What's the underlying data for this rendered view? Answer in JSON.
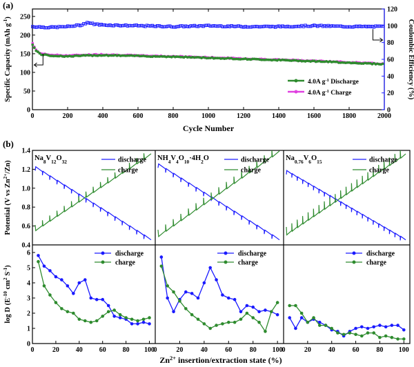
{
  "panel_a": {
    "label": "(a)",
    "xlabel": "Cycle Number",
    "ylabel_left": "Specific Capacity (mAh g",
    "ylabel_left_sup": "-1",
    "ylabel_left_close": ")",
    "ylabel_right": "Coulombic Efficiency (%)",
    "xticks": [
      "0",
      "200",
      "400",
      "600",
      "800",
      "1000",
      "1200",
      "1400",
      "1600",
      "1800",
      "2000"
    ],
    "yticks_left": [
      "0",
      "50",
      "100",
      "150",
      "200",
      "250"
    ],
    "yticks_right": [
      "0",
      "20",
      "40",
      "60",
      "80",
      "100",
      "120"
    ],
    "legend": [
      {
        "text": "4.0A g",
        "sup": "-1",
        "suffix": " Discharge",
        "color": "#2e8b2e"
      },
      {
        "text": "4.0A g",
        "sup": "-1",
        "suffix": " Charge",
        "color": "#e040e0"
      }
    ]
  },
  "panel_b": {
    "label": "(b)",
    "xlabel": "Zn",
    "xlabel_sup": "2+",
    "xlabel_rest": " insertion/extraction state (%)",
    "ylabel_top": "Potential (V vs Zn",
    "ylabel_top_sup": "2+",
    "ylabel_top_close": "/Zn)",
    "ylabel_bottom": "log D (E",
    "ylabel_bottom_sup1": "-10",
    "ylabel_bottom_mid": " cm",
    "ylabel_bottom_sup2": "2",
    "ylabel_bottom_end": " S",
    "ylabel_bottom_sup3": "-1",
    "ylabel_bottom_close": ")",
    "yticks_top": [
      "0.4",
      "0.6",
      "0.8",
      "1.0",
      "1.2",
      "1.4"
    ],
    "yticks_bottom": [
      "0",
      "1",
      "2",
      "3",
      "4",
      "5",
      "6"
    ],
    "xticks": [
      "0",
      "20",
      "40",
      "60",
      "80",
      "100"
    ],
    "legend_discharge": "discharge",
    "legend_charge": "charge",
    "materials": [
      {
        "prefix": "Na",
        "parts": [
          [
            "Na",
            "8"
          ],
          [
            "V",
            "12"
          ],
          [
            "O",
            "32"
          ]
        ],
        "text": "Na8V12O32"
      },
      {
        "prefix": "NH4",
        "parts": [
          [
            "NH",
            "4"
          ],
          [
            "V",
            "4"
          ],
          [
            "O",
            "10"
          ],
          [
            "·4H",
            "2"
          ],
          [
            "O",
            ""
          ]
        ],
        "text": "NH4V4O10·4H2O"
      },
      {
        "prefix": "Na0.76",
        "parts": [
          [
            "Na",
            "0.76"
          ],
          [
            "V",
            "6"
          ],
          [
            "O",
            "15"
          ]
        ],
        "text": "Na0.76V6O15"
      }
    ]
  },
  "colors": {
    "blue": "#1a1aff",
    "green": "#2e8b2e",
    "magenta": "#e040e0",
    "black": "#000000"
  },
  "chart_data": [
    {
      "type": "line",
      "title": "",
      "xlabel": "Cycle Number",
      "ylabel": "Specific Capacity (mAh g-1)",
      "y2label": "Coulombic Efficiency (%)",
      "xlim": [
        0,
        2000
      ],
      "ylim": [
        0,
        270
      ],
      "y2lim": [
        0,
        120
      ],
      "series": [
        {
          "name": "4.0A g-1 Discharge",
          "axis": "left",
          "x": [
            1,
            20,
            50,
            100,
            200,
            300,
            400,
            600,
            800,
            1000,
            1200,
            1400,
            1600,
            1800,
            2000
          ],
          "y": [
            175,
            158,
            148,
            145,
            143,
            145,
            146,
            144,
            142,
            139,
            136,
            133,
            130,
            126,
            122
          ]
        },
        {
          "name": "4.0A g-1 Charge",
          "axis": "left",
          "x": [
            1,
            20,
            50,
            100,
            200,
            300,
            400,
            600,
            800,
            1000,
            1200,
            1400,
            1600,
            1800,
            2000
          ],
          "y": [
            178,
            160,
            150,
            147,
            145,
            147,
            148,
            145,
            143,
            140,
            137,
            134,
            131,
            127,
            123
          ]
        },
        {
          "name": "Coulombic Efficiency",
          "axis": "right",
          "x": [
            1,
            100,
            200,
            280,
            310,
            350,
            400,
            600,
            800,
            1000,
            1200,
            1400,
            1600,
            1800,
            2000
          ],
          "y": [
            99,
            98,
            99,
            101,
            104,
            102,
            101,
            100,
            99,
            100,
            99,
            99,
            100,
            99,
            99
          ]
        }
      ]
    },
    {
      "type": "line",
      "title": "Na8V12O32",
      "xlabel": "Zn2+ insertion/extraction state (%)",
      "ylabel": "Potential (V vs Zn2+/Zn)",
      "ylim": [
        0.4,
        1.4
      ],
      "series": [
        {
          "name": "discharge",
          "x": [
            0,
            100
          ],
          "y": [
            1.22,
            0.45
          ]
        },
        {
          "name": "charge",
          "x": [
            0,
            100
          ],
          "y": [
            0.56,
            1.37
          ]
        }
      ]
    },
    {
      "type": "line",
      "title": "NH4V4O10·4H2O",
      "xlabel": "Zn2+ insertion/extraction state (%)",
      "ylabel": "Potential (V vs Zn2+/Zn)",
      "ylim": [
        0.4,
        1.4
      ],
      "series": [
        {
          "name": "discharge",
          "x": [
            0,
            100
          ],
          "y": [
            1.25,
            0.45
          ]
        },
        {
          "name": "charge",
          "x": [
            0,
            100
          ],
          "y": [
            0.5,
            1.4
          ]
        }
      ]
    },
    {
      "type": "line",
      "title": "Na0.76V6O15",
      "xlabel": "Zn2+ insertion/extraction state (%)",
      "ylabel": "Potential (V vs Zn2+/Zn)",
      "ylim": [
        0.4,
        1.4
      ],
      "series": [
        {
          "name": "discharge",
          "x": [
            0,
            100
          ],
          "y": [
            1.18,
            0.45
          ]
        },
        {
          "name": "charge",
          "x": [
            0,
            100
          ],
          "y": [
            0.52,
            1.37
          ]
        }
      ]
    },
    {
      "type": "line",
      "title": "Na8V12O32",
      "xlabel": "Zn2+ insertion/extraction state (%)",
      "ylabel": "log D (E-10 cm2 S-1)",
      "xlim": [
        0,
        105
      ],
      "ylim": [
        0,
        6.5
      ],
      "series": [
        {
          "name": "discharge",
          "x": [
            5,
            10,
            15,
            20,
            25,
            30,
            35,
            40,
            45,
            50,
            55,
            60,
            65,
            70,
            75,
            80,
            85,
            90,
            95,
            100
          ],
          "y": [
            5.8,
            5.1,
            4.8,
            4.4,
            4.2,
            3.8,
            3.3,
            4.0,
            4.2,
            3.0,
            2.9,
            2.9,
            2.5,
            1.8,
            1.7,
            1.6,
            1.3,
            1.3,
            1.4,
            1.3
          ]
        },
        {
          "name": "charge",
          "x": [
            5,
            10,
            15,
            20,
            25,
            30,
            35,
            40,
            45,
            50,
            55,
            60,
            65,
            70,
            75,
            80,
            85,
            90,
            95,
            100
          ],
          "y": [
            5.4,
            3.8,
            3.2,
            2.7,
            2.3,
            2.1,
            2.0,
            1.6,
            1.5,
            1.4,
            1.5,
            1.8,
            2.1,
            2.2,
            1.9,
            1.7,
            1.6,
            1.5,
            1.6,
            1.7
          ]
        }
      ]
    },
    {
      "type": "line",
      "title": "NH4V4O10·4H2O",
      "xlabel": "Zn2+ insertion/extraction state (%)",
      "ylabel": "log D (E-10 cm2 S-1)",
      "xlim": [
        0,
        105
      ],
      "ylim": [
        0,
        6.5
      ],
      "series": [
        {
          "name": "discharge",
          "x": [
            5,
            10,
            15,
            20,
            25,
            30,
            35,
            40,
            45,
            50,
            55,
            60,
            65,
            70,
            75,
            80,
            85,
            90,
            95,
            100
          ],
          "y": [
            5.7,
            3.0,
            2.1,
            2.9,
            3.4,
            3.3,
            3.0,
            4.0,
            5.0,
            4.2,
            3.2,
            3.0,
            2.9,
            2.1,
            2.5,
            2.4,
            2.1,
            2.2,
            2.1,
            1.9
          ]
        },
        {
          "name": "charge",
          "x": [
            5,
            10,
            15,
            20,
            25,
            30,
            35,
            40,
            45,
            50,
            55,
            60,
            65,
            70,
            75,
            80,
            85,
            90,
            95,
            100
          ],
          "y": [
            5.1,
            3.8,
            3.4,
            2.8,
            2.3,
            1.9,
            1.6,
            1.3,
            1.0,
            1.2,
            1.3,
            1.4,
            1.4,
            1.6,
            2.0,
            1.7,
            1.4,
            0.8,
            2.1,
            2.7
          ]
        }
      ]
    },
    {
      "type": "line",
      "title": "Na0.76V6O15",
      "xlabel": "Zn2+ insertion/extraction state (%)",
      "ylabel": "log D (E-10 cm2 S-1)",
      "xlim": [
        0,
        105
      ],
      "ylim": [
        0,
        6.5
      ],
      "series": [
        {
          "name": "discharge",
          "x": [
            5,
            10,
            15,
            20,
            25,
            30,
            35,
            40,
            45,
            50,
            55,
            60,
            65,
            70,
            75,
            80,
            85,
            90,
            95,
            100
          ],
          "y": [
            1.7,
            1.0,
            1.7,
            1.4,
            1.6,
            1.4,
            1.2,
            0.9,
            0.8,
            0.5,
            0.8,
            1.0,
            1.1,
            1.0,
            1.1,
            1.2,
            1.1,
            1.2,
            1.2,
            0.9
          ]
        },
        {
          "name": "charge",
          "x": [
            5,
            10,
            15,
            20,
            25,
            30,
            35,
            40,
            45,
            50,
            55,
            60,
            65,
            70,
            75,
            80,
            85,
            90,
            95,
            100
          ],
          "y": [
            2.5,
            2.5,
            2.0,
            1.4,
            1.7,
            1.2,
            1.2,
            1.0,
            0.7,
            0.6,
            0.7,
            0.6,
            0.5,
            0.7,
            0.7,
            0.4,
            0.5,
            0.4,
            0.3,
            0.3
          ]
        }
      ]
    }
  ]
}
